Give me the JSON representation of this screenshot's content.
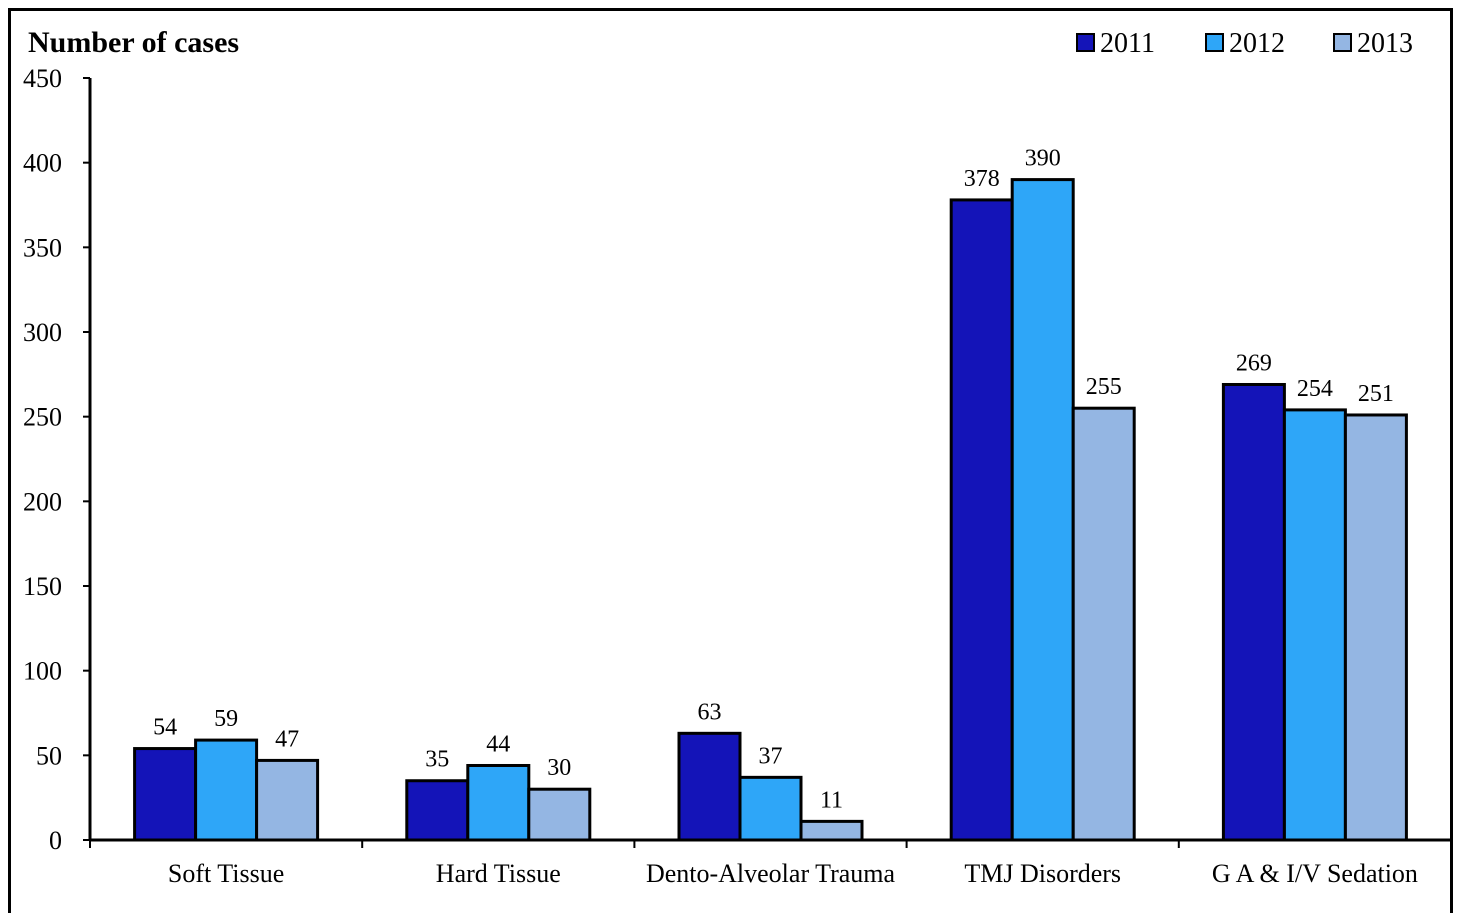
{
  "chart_data": {
    "type": "bar",
    "ylabel": "Number of cases",
    "categories": [
      "Soft Tissue",
      "Hard Tissue",
      "Dento-Alveolar Trauma",
      "TMJ Disorders",
      "G A & I/V Sedation"
    ],
    "series": [
      {
        "name": "2011",
        "color": "#1414B8",
        "values": [
          54,
          35,
          63,
          378,
          269
        ]
      },
      {
        "name": "2012",
        "color": "#2EA6F8",
        "values": [
          59,
          44,
          37,
          390,
          254
        ]
      },
      {
        "name": "2013",
        "color": "#94B6E3",
        "values": [
          47,
          30,
          11,
          255,
          251
        ]
      }
    ],
    "ylim": [
      0,
      450
    ],
    "yticks": [
      "0",
      "50",
      "100",
      "150",
      "200",
      "250",
      "300",
      "350",
      "400",
      "450"
    ],
    "grid": false,
    "legend_position": "top-right"
  }
}
